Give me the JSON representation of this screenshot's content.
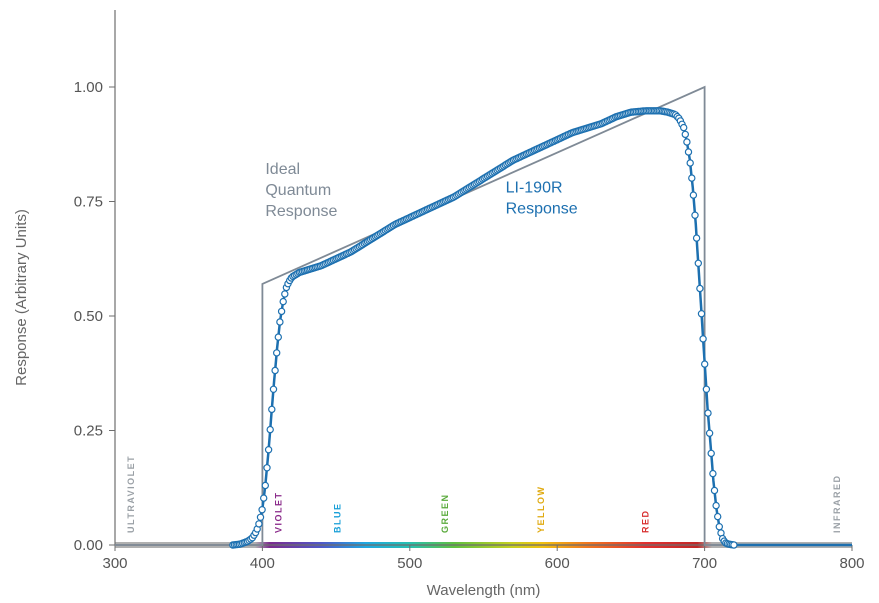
{
  "chart_data": {
    "type": "line",
    "title": "",
    "xlabel": "Wavelength (nm)",
    "ylabel": "Response (Arbitrary Units)",
    "xlim": [
      300,
      800
    ],
    "ylim": [
      0,
      1.1
    ],
    "xticks": [
      300,
      400,
      500,
      600,
      700,
      800
    ],
    "xtick_labels": [
      "300",
      "400",
      "500",
      "600",
      "700",
      "800"
    ],
    "yticks": [
      0,
      0.25,
      0.5,
      0.75,
      1.0
    ],
    "ytick_labels": [
      "0.00",
      "0.25",
      "0.50",
      "0.75",
      "1.00"
    ],
    "grid": false,
    "series": [
      {
        "name": "Ideal Quantum Response",
        "color": "#7f8a96",
        "style": "line",
        "x": [
          300,
          400,
          400,
          700,
          700,
          800
        ],
        "y": [
          0,
          0,
          0.57,
          1.0,
          0,
          0
        ]
      },
      {
        "name": "LI-190R Response",
        "color": "#1d70b0",
        "style": "line-markers",
        "x": [
          380,
          385,
          390,
          393,
          396,
          398,
          400,
          402,
          404,
          406,
          408,
          410,
          412,
          414,
          416,
          418,
          420,
          425,
          430,
          440,
          450,
          460,
          470,
          480,
          490,
          500,
          510,
          520,
          530,
          540,
          550,
          560,
          570,
          580,
          590,
          600,
          610,
          620,
          630,
          640,
          650,
          660,
          670,
          675,
          680,
          683,
          686,
          688,
          690,
          692,
          694,
          696,
          698,
          700,
          702,
          704,
          706,
          708,
          710,
          712,
          714,
          716,
          720,
          730,
          740,
          750,
          760,
          770,
          780,
          790,
          800
        ],
        "y": [
          0.0,
          0.002,
          0.008,
          0.015,
          0.03,
          0.05,
          0.08,
          0.13,
          0.2,
          0.28,
          0.36,
          0.43,
          0.49,
          0.53,
          0.56,
          0.575,
          0.585,
          0.595,
          0.6,
          0.61,
          0.625,
          0.64,
          0.66,
          0.68,
          0.7,
          0.715,
          0.73,
          0.745,
          0.76,
          0.78,
          0.8,
          0.82,
          0.84,
          0.855,
          0.87,
          0.885,
          0.9,
          0.91,
          0.92,
          0.935,
          0.945,
          0.948,
          0.948,
          0.945,
          0.94,
          0.93,
          0.91,
          0.88,
          0.84,
          0.78,
          0.7,
          0.6,
          0.5,
          0.4,
          0.3,
          0.22,
          0.14,
          0.08,
          0.04,
          0.015,
          0.005,
          0.002,
          0.0,
          0.0,
          0.0,
          0.0,
          0.0,
          0.0,
          0.0,
          0.0,
          0.0
        ]
      }
    ],
    "annotations": [
      {
        "lines": [
          "Ideal",
          "Quantum",
          "Response"
        ],
        "color": "#7f8a96",
        "x": 402,
        "y": 0.81
      },
      {
        "lines": [
          "LI-190R",
          "Response"
        ],
        "color": "#1d70b0",
        "x": 565,
        "y": 0.77
      }
    ],
    "spectrum_regions": [
      {
        "label": "ULTRAVIOLET",
        "x": 313,
        "color": "#9aa0a6"
      },
      {
        "label": "VIOLET",
        "x": 413,
        "color": "#8a2a8a"
      },
      {
        "label": "BLUE",
        "x": 453,
        "color": "#1aa0d8"
      },
      {
        "label": "GREEN",
        "x": 526,
        "color": "#5aaa3c"
      },
      {
        "label": "YELLOW",
        "x": 591,
        "color": "#e0aa10"
      },
      {
        "label": "RED",
        "x": 662,
        "color": "#d83030"
      },
      {
        "label": "INFRARED",
        "x": 792,
        "color": "#9aa0a6"
      }
    ],
    "spectrum_bar_stops": [
      {
        "x": 300,
        "color": "#b0b0b0"
      },
      {
        "x": 395,
        "color": "#b0b0b0"
      },
      {
        "x": 405,
        "color": "#7b2b8e"
      },
      {
        "x": 440,
        "color": "#4f58c8"
      },
      {
        "x": 470,
        "color": "#20a8e0"
      },
      {
        "x": 500,
        "color": "#28c0b0"
      },
      {
        "x": 530,
        "color": "#60c040"
      },
      {
        "x": 570,
        "color": "#c8d020"
      },
      {
        "x": 590,
        "color": "#f0c010"
      },
      {
        "x": 620,
        "color": "#f07820"
      },
      {
        "x": 660,
        "color": "#e03030"
      },
      {
        "x": 695,
        "color": "#c02828"
      },
      {
        "x": 705,
        "color": "#b0b0b0"
      },
      {
        "x": 800,
        "color": "#b0b0b0"
      }
    ]
  }
}
